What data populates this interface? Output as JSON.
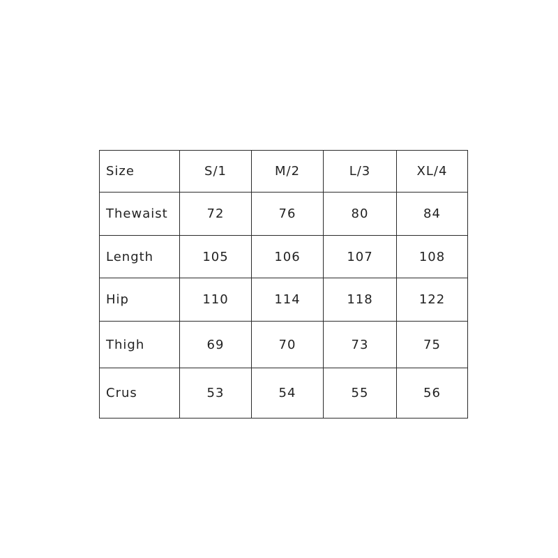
{
  "table": {
    "header": [
      "Size",
      "S/1",
      "M/2",
      "L/3",
      "XL/4"
    ],
    "rows": [
      [
        "Thewaist",
        72,
        76,
        80,
        84
      ],
      [
        "Length",
        105,
        106,
        107,
        108
      ],
      [
        "Hip",
        110,
        114,
        118,
        122
      ],
      [
        "Thigh",
        69,
        70,
        73,
        75
      ],
      [
        "Crus",
        53,
        54,
        55,
        56
      ]
    ]
  }
}
